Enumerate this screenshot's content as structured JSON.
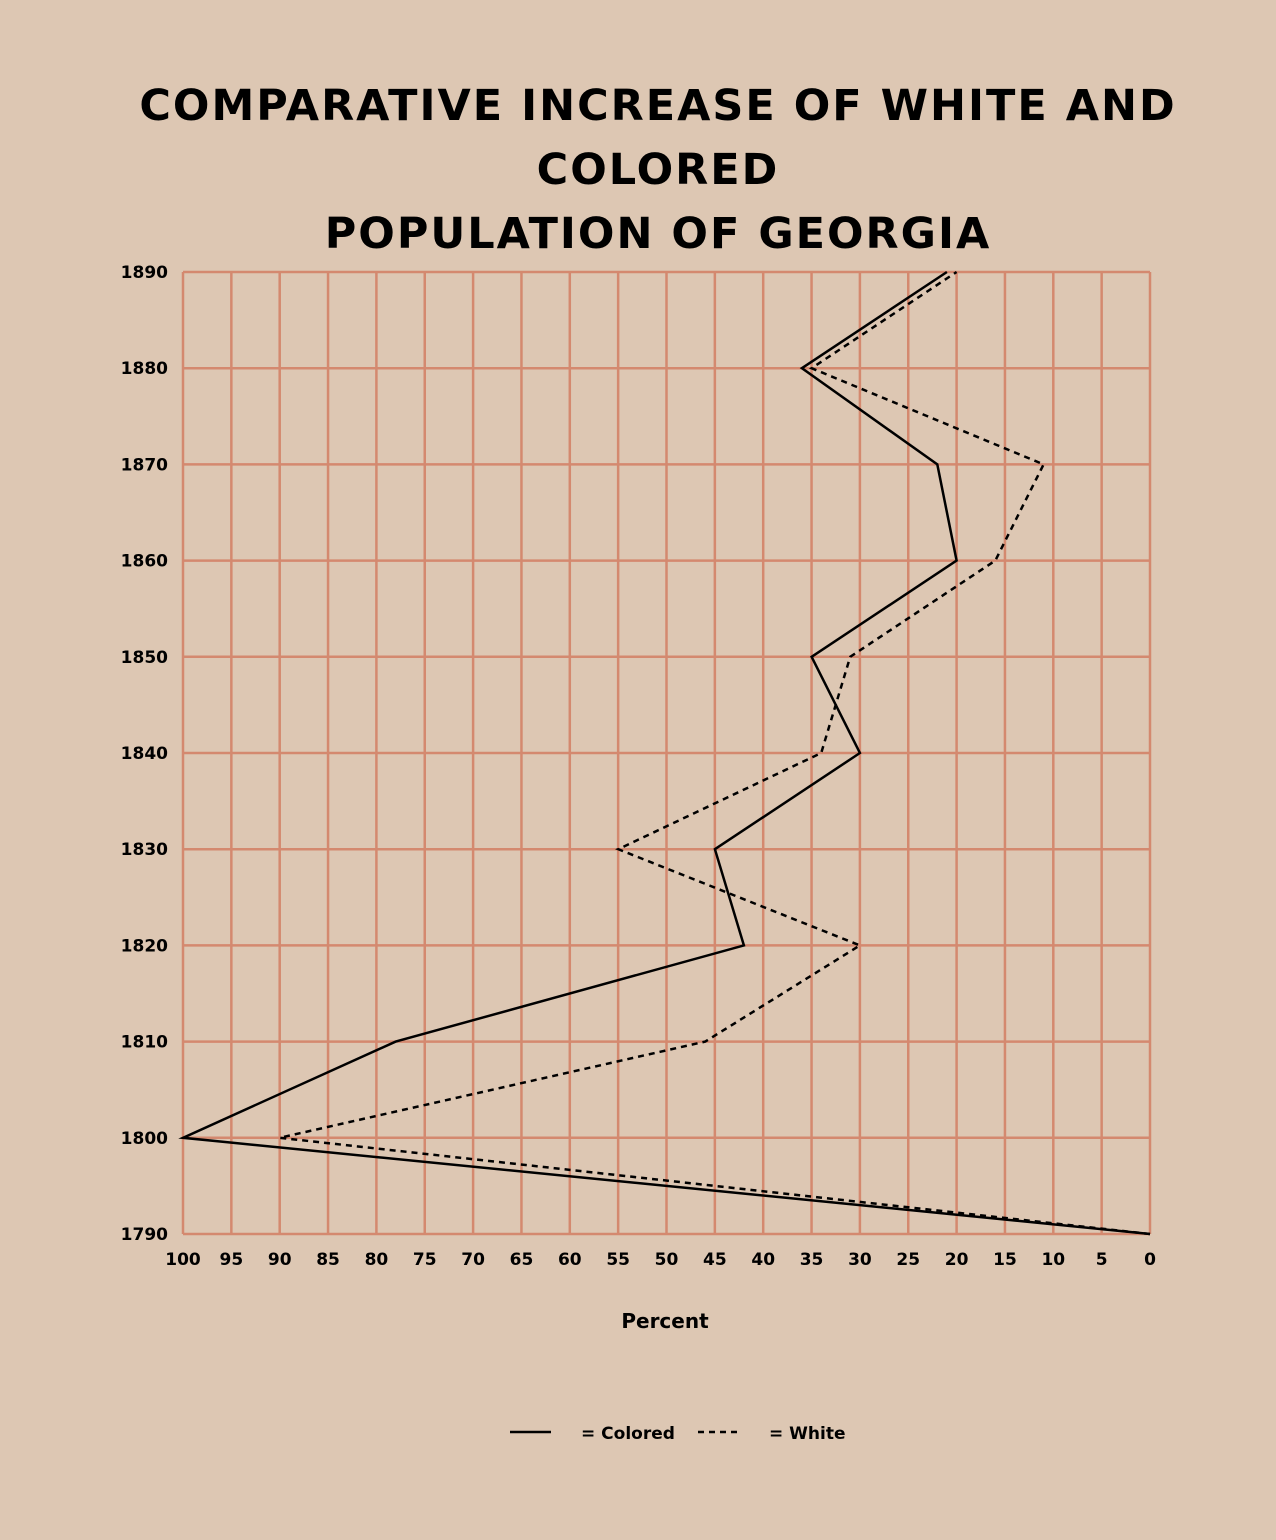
{
  "chart_data": {
    "type": "line",
    "title": "COMPARATIVE INCREASE OF WHITE AND COLORED POPULATION OF GEORGIA",
    "title_lines": [
      "COMPARATIVE INCREASE OF WHITE AND COLORED",
      "POPULATION OF GEORGIA"
    ],
    "xlabel": "Percent",
    "ylabel": "",
    "xlim": [
      100,
      0
    ],
    "ylim": [
      1790,
      1890
    ],
    "x_reversed": true,
    "orientation": "horizontal",
    "grid": true,
    "legend_position": "bottom",
    "x_ticks": [
      100,
      95,
      90,
      85,
      80,
      75,
      70,
      65,
      60,
      55,
      50,
      45,
      40,
      35,
      30,
      25,
      20,
      15,
      10,
      5,
      0
    ],
    "y_ticks": [
      1790,
      1800,
      1810,
      1820,
      1830,
      1840,
      1850,
      1860,
      1870,
      1880,
      1890
    ],
    "years": [
      1790,
      1800,
      1810,
      1820,
      1830,
      1840,
      1850,
      1860,
      1870,
      1880,
      1890
    ],
    "series": [
      {
        "name": "Colored",
        "legend_label": "= Colored",
        "style": "solid",
        "values": [
          0,
          100,
          78,
          42,
          45,
          30,
          35,
          20,
          22,
          36,
          21
        ]
      },
      {
        "name": "White",
        "legend_label": "= White",
        "style": "dashed",
        "values": [
          0,
          90,
          46,
          30,
          55,
          34,
          31,
          16,
          11,
          35,
          20
        ]
      }
    ]
  },
  "colors": {
    "background": "#ddc7b3",
    "grid": "#d4896f",
    "line": "#000000"
  }
}
